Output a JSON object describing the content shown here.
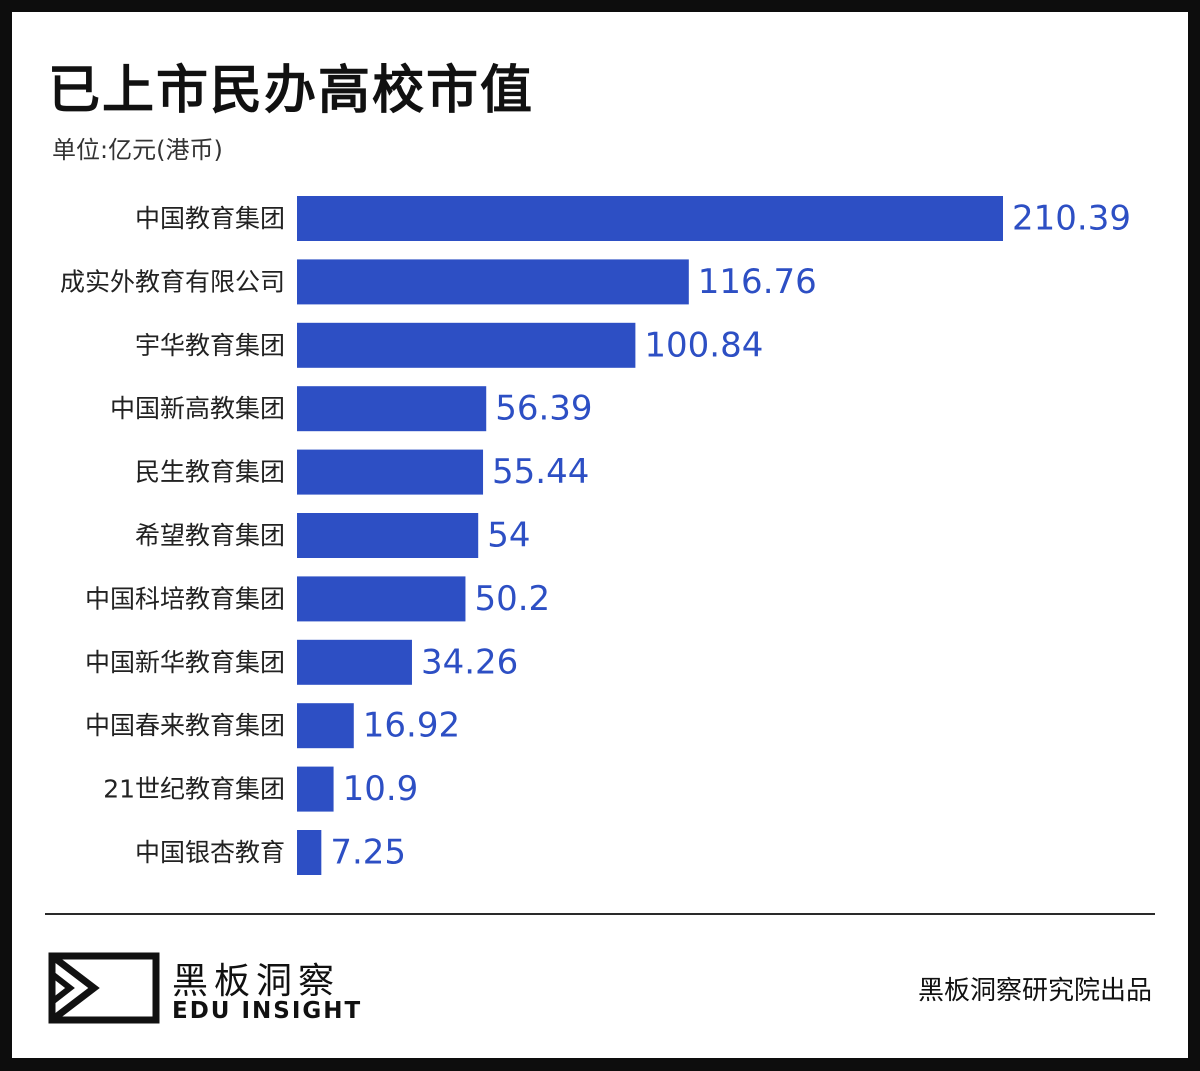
{
  "title": "已上市民办高校市值",
  "unit_label": "单位:亿元(港币)",
  "colors": {
    "bar": "#2d4fc4",
    "value_label": "#2d4fc4",
    "category_label": "#222222"
  },
  "chart_data": {
    "type": "bar",
    "orientation": "horizontal",
    "title": "已上市民办高校市值",
    "ylabel": "",
    "xlabel": "",
    "categories": [
      "中国教育集团",
      "成实外教育有限公司",
      "宇华教育集团",
      "中国新高教集团",
      "民生教育集团",
      "希望教育集团",
      "中国科培教育集团",
      "中国新华教育集团",
      "中国春来教育集团",
      "21世纪教育集团",
      "中国银杏教育"
    ],
    "values": [
      210.39,
      116.76,
      100.84,
      56.39,
      55.44,
      54,
      50.2,
      34.26,
      16.92,
      10.9,
      7.25
    ],
    "value_labels": [
      "210.39",
      "116.76",
      "100.84",
      "56.39",
      "55.44",
      "54",
      "50.2",
      "34.26",
      "16.92",
      "10.9",
      "7.25"
    ],
    "xlim": [
      0,
      210.39
    ],
    "grid": false,
    "legend": "none"
  },
  "footer": {
    "logo_cn": "黑板洞察",
    "logo_en": "EDU INSIGHT",
    "source": "黑板洞察研究院出品"
  }
}
